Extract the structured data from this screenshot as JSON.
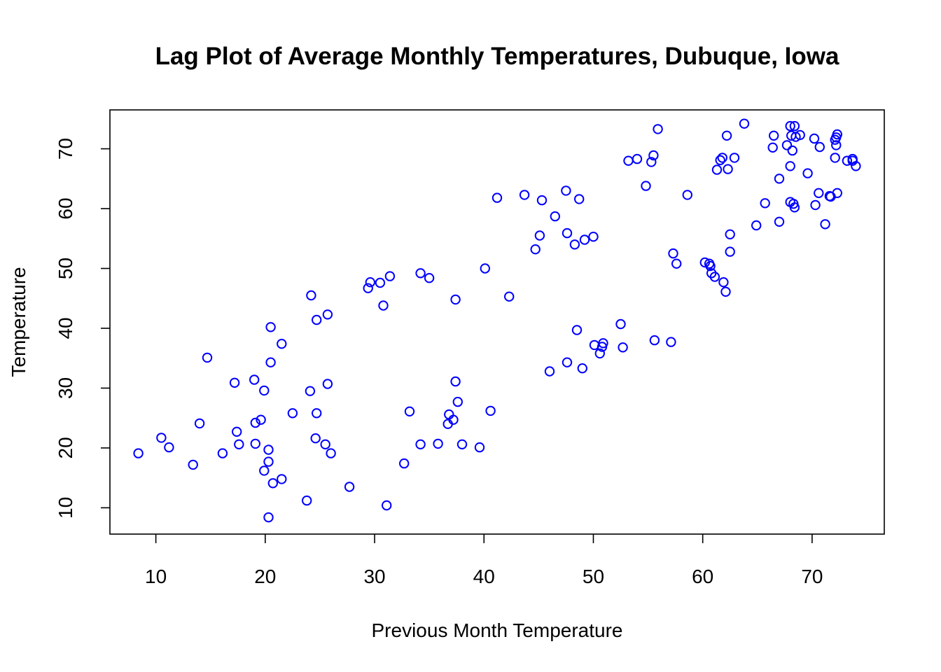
{
  "colors": {
    "point": "#0000ff",
    "axis": "#000000",
    "background": "#ffffff"
  },
  "chart_data": {
    "type": "scatter",
    "title": "Lag Plot of Average Monthly Temperatures, Dubuque, Iowa",
    "xlabel": "Previous Month Temperature",
    "ylabel": "Temperature",
    "xlim": [
      5.8,
      76.6
    ],
    "ylim": [
      5.6,
      76.5
    ],
    "xticks": [
      10,
      20,
      30,
      40,
      50,
      60,
      70
    ],
    "yticks": [
      10,
      20,
      30,
      40,
      50,
      60,
      70
    ],
    "xtick_labels": [
      "10",
      "20",
      "30",
      "40",
      "50",
      "60",
      "70"
    ],
    "ytick_labels": [
      "10",
      "20",
      "30",
      "40",
      "50",
      "60",
      "70"
    ],
    "grid": false,
    "marker": "open-circle",
    "series": [
      {
        "points": [
          [
            8.4,
            19.1
          ],
          [
            10.5,
            21.7
          ],
          [
            11.2,
            20.1
          ],
          [
            13.4,
            17.2
          ],
          [
            14.0,
            24.1
          ],
          [
            14.7,
            35.1
          ],
          [
            16.1,
            19.1
          ],
          [
            17.2,
            30.9
          ],
          [
            17.4,
            22.7
          ],
          [
            17.6,
            20.6
          ],
          [
            19.0,
            31.4
          ],
          [
            19.1,
            24.2
          ],
          [
            19.1,
            20.7
          ],
          [
            19.6,
            24.7
          ],
          [
            19.9,
            29.6
          ],
          [
            19.9,
            16.2
          ],
          [
            20.3,
            19.7
          ],
          [
            20.3,
            17.7
          ],
          [
            20.3,
            8.4
          ],
          [
            20.5,
            34.3
          ],
          [
            20.5,
            40.2
          ],
          [
            20.7,
            14.1
          ],
          [
            21.5,
            37.4
          ],
          [
            21.5,
            14.8
          ],
          [
            22.5,
            25.8
          ],
          [
            23.8,
            11.2
          ],
          [
            24.1,
            29.5
          ],
          [
            24.2,
            45.5
          ],
          [
            24.6,
            21.6
          ],
          [
            24.7,
            25.8
          ],
          [
            24.7,
            41.4
          ],
          [
            25.5,
            20.6
          ],
          [
            25.7,
            42.3
          ],
          [
            25.7,
            30.7
          ],
          [
            26.0,
            19.1
          ],
          [
            27.7,
            13.5
          ],
          [
            29.4,
            46.7
          ],
          [
            29.6,
            47.7
          ],
          [
            30.5,
            47.6
          ],
          [
            30.8,
            43.8
          ],
          [
            31.1,
            10.4
          ],
          [
            31.4,
            48.7
          ],
          [
            32.7,
            17.4
          ],
          [
            33.2,
            26.1
          ],
          [
            34.2,
            49.2
          ],
          [
            34.2,
            20.6
          ],
          [
            35.0,
            48.4
          ],
          [
            35.8,
            20.7
          ],
          [
            36.7,
            24.0
          ],
          [
            36.8,
            25.6
          ],
          [
            37.2,
            24.7
          ],
          [
            37.4,
            44.8
          ],
          [
            37.4,
            31.1
          ],
          [
            37.6,
            27.7
          ],
          [
            38.0,
            20.6
          ],
          [
            39.6,
            20.1
          ],
          [
            40.1,
            50.0
          ],
          [
            40.6,
            26.2
          ],
          [
            41.2,
            61.8
          ],
          [
            42.3,
            45.3
          ],
          [
            43.7,
            62.3
          ],
          [
            44.7,
            53.2
          ],
          [
            45.1,
            55.5
          ],
          [
            45.3,
            61.4
          ],
          [
            46.0,
            32.8
          ],
          [
            46.5,
            58.7
          ],
          [
            47.5,
            63.0
          ],
          [
            47.6,
            55.9
          ],
          [
            47.6,
            34.3
          ],
          [
            48.3,
            54.0
          ],
          [
            48.5,
            39.7
          ],
          [
            48.7,
            61.6
          ],
          [
            49.0,
            33.3
          ],
          [
            49.2,
            54.8
          ],
          [
            50.0,
            55.3
          ],
          [
            50.1,
            37.2
          ],
          [
            50.6,
            35.8
          ],
          [
            50.8,
            36.9
          ],
          [
            50.9,
            37.5
          ],
          [
            52.5,
            40.7
          ],
          [
            52.7,
            36.8
          ],
          [
            53.2,
            68.0
          ],
          [
            54.0,
            68.3
          ],
          [
            54.8,
            63.8
          ],
          [
            55.3,
            67.8
          ],
          [
            55.5,
            68.9
          ],
          [
            55.6,
            38.0
          ],
          [
            55.9,
            73.3
          ],
          [
            57.1,
            37.7
          ],
          [
            57.3,
            52.5
          ],
          [
            57.6,
            50.8
          ],
          [
            58.6,
            62.3
          ],
          [
            60.2,
            51.0
          ],
          [
            60.6,
            50.8
          ],
          [
            60.7,
            50.4
          ],
          [
            60.8,
            49.2
          ],
          [
            61.1,
            48.6
          ],
          [
            61.3,
            66.5
          ],
          [
            61.6,
            68.1
          ],
          [
            61.8,
            68.5
          ],
          [
            61.9,
            47.7
          ],
          [
            62.1,
            46.1
          ],
          [
            62.2,
            72.2
          ],
          [
            62.3,
            66.6
          ],
          [
            62.5,
            52.8
          ],
          [
            62.5,
            55.7
          ],
          [
            62.9,
            68.5
          ],
          [
            63.8,
            74.2
          ],
          [
            64.9,
            57.2
          ],
          [
            65.7,
            60.9
          ],
          [
            66.4,
            70.2
          ],
          [
            66.5,
            72.2
          ],
          [
            67.0,
            65.0
          ],
          [
            67.0,
            57.8
          ],
          [
            67.7,
            70.6
          ],
          [
            68.0,
            73.8
          ],
          [
            68.0,
            67.1
          ],
          [
            68.0,
            61.1
          ],
          [
            68.1,
            72.2
          ],
          [
            68.2,
            69.7
          ],
          [
            68.3,
            60.8
          ],
          [
            68.4,
            60.2
          ],
          [
            68.4,
            73.8
          ],
          [
            68.5,
            72.0
          ],
          [
            68.9,
            72.3
          ],
          [
            69.6,
            65.9
          ],
          [
            70.2,
            71.7
          ],
          [
            70.3,
            60.6
          ],
          [
            70.6,
            62.6
          ],
          [
            70.7,
            70.3
          ],
          [
            71.2,
            57.4
          ],
          [
            71.6,
            62.1
          ],
          [
            71.7,
            62.0
          ],
          [
            72.1,
            71.5
          ],
          [
            72.1,
            68.5
          ],
          [
            72.2,
            71.9
          ],
          [
            72.2,
            70.6
          ],
          [
            72.3,
            72.4
          ],
          [
            72.3,
            62.6
          ],
          [
            73.2,
            68.0
          ],
          [
            73.7,
            68.0
          ],
          [
            73.7,
            68.3
          ],
          [
            74.0,
            67.1
          ]
        ]
      }
    ]
  }
}
